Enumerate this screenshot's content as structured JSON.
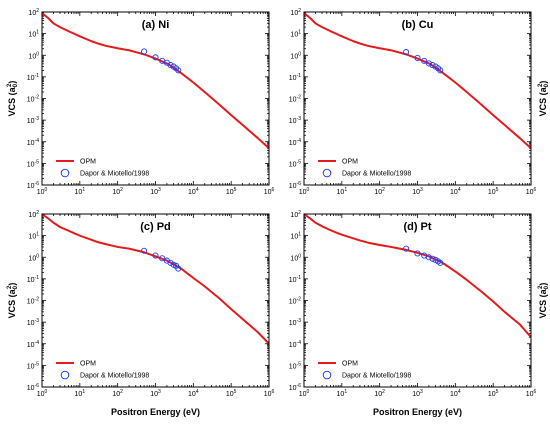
{
  "figure": {
    "xlabel": "Positron Energy (eV)",
    "ylabel_main": "VCS (a",
    "ylabel_sub": "0",
    "ylabel_sup": "2",
    "ylabel_end": ")"
  },
  "chart_data": [
    {
      "type": "line",
      "title": "(a) Ni",
      "xscale": "log",
      "yscale": "log",
      "xlim": [
        1,
        1000000
      ],
      "ylim": [
        1e-06,
        100
      ],
      "legend_position": "bottom-left",
      "series": [
        {
          "name": "OPM",
          "color": "#e41a1c",
          "style": "line",
          "x": [
            1,
            1.5,
            2,
            3,
            5,
            7,
            10,
            20,
            30,
            50,
            100,
            200,
            300,
            500,
            1000,
            2000,
            3000,
            5000,
            10000,
            20000,
            50000,
            100000,
            200000,
            500000,
            1000000
          ],
          "y": [
            90,
            50,
            30,
            20,
            13,
            10,
            7.5,
            4.5,
            3.5,
            2.7,
            2.1,
            1.7,
            1.4,
            1.1,
            0.7,
            0.42,
            0.27,
            0.14,
            0.055,
            0.02,
            0.005,
            0.0017,
            0.0006,
            0.00015,
            5e-05
          ]
        },
        {
          "name": "Dapor & Miotello/1998",
          "color": "#1f3cff",
          "style": "marker",
          "x": [
            500,
            1000,
            1500,
            2000,
            2500,
            3000,
            3500,
            4000
          ],
          "y": [
            1.5,
            0.8,
            0.55,
            0.45,
            0.35,
            0.3,
            0.25,
            0.2
          ]
        }
      ]
    },
    {
      "type": "line",
      "title": "(b) Cu",
      "xscale": "log",
      "yscale": "log",
      "xlim": [
        1,
        1000000
      ],
      "ylim": [
        1e-06,
        100
      ],
      "legend_position": "bottom-left",
      "series": [
        {
          "name": "OPM",
          "color": "#e41a1c",
          "style": "line",
          "x": [
            1,
            1.5,
            2,
            3,
            5,
            7,
            10,
            20,
            30,
            50,
            100,
            200,
            300,
            500,
            1000,
            2000,
            3000,
            5000,
            10000,
            20000,
            50000,
            100000,
            200000,
            500000,
            1000000
          ],
          "y": [
            90,
            50,
            30,
            20,
            13,
            10,
            7.5,
            4.5,
            3.5,
            2.7,
            2.1,
            1.7,
            1.4,
            1.1,
            0.7,
            0.42,
            0.27,
            0.14,
            0.055,
            0.02,
            0.005,
            0.0017,
            0.0006,
            0.00015,
            5e-05
          ]
        },
        {
          "name": "Dapor & Miotello/1998",
          "color": "#1f3cff",
          "style": "marker",
          "x": [
            500,
            1000,
            1500,
            2000,
            2500,
            3000,
            3500,
            4000
          ],
          "y": [
            1.4,
            0.75,
            0.55,
            0.42,
            0.35,
            0.3,
            0.25,
            0.2
          ]
        }
      ]
    },
    {
      "type": "line",
      "title": "(c) Pd",
      "xscale": "log",
      "yscale": "log",
      "xlim": [
        1,
        1000000
      ],
      "ylim": [
        1e-06,
        100
      ],
      "legend_position": "bottom-left",
      "series": [
        {
          "name": "OPM",
          "color": "#e41a1c",
          "style": "line",
          "x": [
            1,
            1.5,
            2,
            3,
            5,
            7,
            10,
            20,
            30,
            50,
            100,
            200,
            300,
            500,
            1000,
            2000,
            3000,
            5000,
            10000,
            20000,
            50000,
            100000,
            200000,
            500000,
            1000000
          ],
          "y": [
            100,
            60,
            40,
            25,
            17,
            13,
            10,
            6.5,
            5,
            4,
            3,
            2.5,
            2.1,
            1.7,
            1.1,
            0.7,
            0.48,
            0.28,
            0.11,
            0.045,
            0.012,
            0.004,
            0.0014,
            0.00035,
            0.0001
          ]
        },
        {
          "name": "Dapor & Miotello/1998",
          "color": "#1f3cff",
          "style": "marker",
          "x": [
            500,
            1000,
            1500,
            2000,
            2500,
            3000,
            3500,
            4000
          ],
          "y": [
            2,
            1.2,
            0.9,
            0.7,
            0.55,
            0.45,
            0.4,
            0.3
          ]
        }
      ]
    },
    {
      "type": "line",
      "title": "(d) Pt",
      "xscale": "log",
      "yscale": "log",
      "xlim": [
        1,
        1000000
      ],
      "ylim": [
        1e-06,
        100
      ],
      "legend_position": "bottom-left",
      "series": [
        {
          "name": "OPM",
          "color": "#e41a1c",
          "style": "line",
          "x": [
            1,
            1.5,
            2,
            3,
            5,
            7,
            10,
            20,
            30,
            50,
            100,
            200,
            300,
            500,
            1000,
            2000,
            3000,
            5000,
            10000,
            20000,
            50000,
            100000,
            200000,
            500000,
            1000000
          ],
          "y": [
            100,
            60,
            40,
            27,
            18,
            14,
            11,
            7.5,
            6,
            4.7,
            3.7,
            3,
            2.6,
            2.2,
            1.6,
            1.1,
            0.8,
            0.5,
            0.22,
            0.09,
            0.025,
            0.009,
            0.003,
            0.0008,
            0.0002
          ]
        },
        {
          "name": "Dapor & Miotello/1998",
          "color": "#1f3cff",
          "style": "marker",
          "x": [
            500,
            1000,
            1500,
            2000,
            2500,
            3000,
            3500,
            4000
          ],
          "y": [
            2.5,
            1.5,
            1.2,
            1.0,
            0.85,
            0.75,
            0.65,
            0.55
          ]
        }
      ]
    }
  ]
}
